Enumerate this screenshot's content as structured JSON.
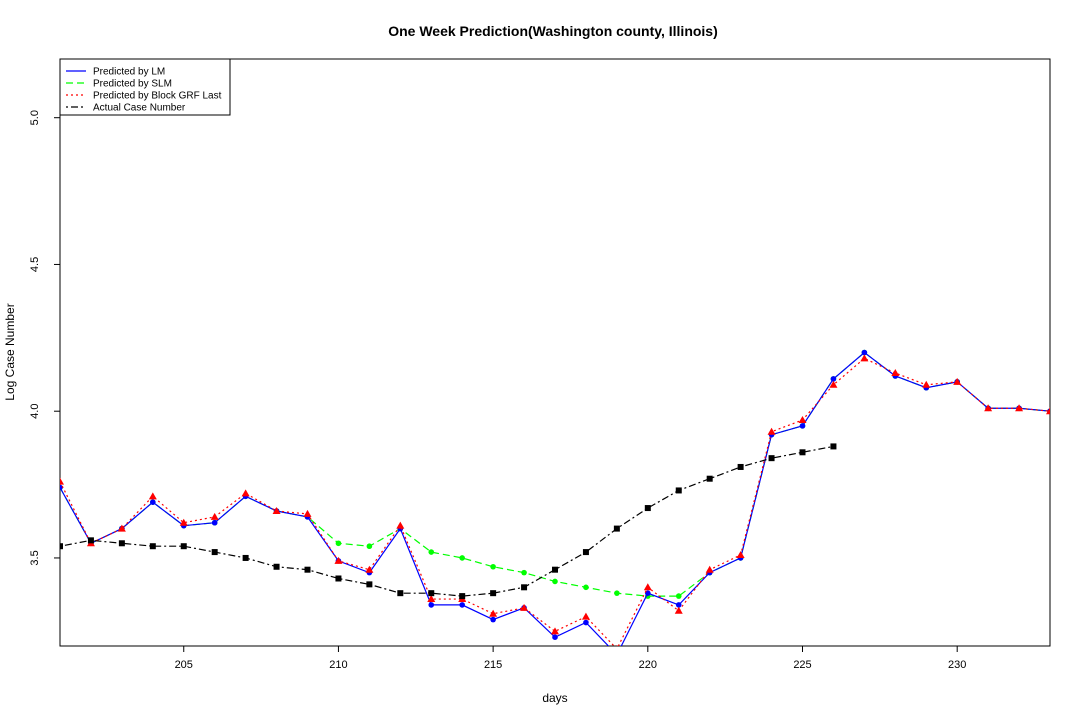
{
  "chart_data": {
    "type": "line",
    "title": "One Week Prediction(Washington county, Illinois)",
    "xlabel": "days",
    "ylabel": "Log Case Number",
    "xlim": [
      201,
      233
    ],
    "ylim": [
      3.2,
      5.2
    ],
    "x_ticks": [
      205,
      210,
      215,
      220,
      225,
      230
    ],
    "y_ticks": [
      3.5,
      4.0,
      4.5,
      5.0
    ],
    "y_tick_labels": [
      "3.5",
      "4.0",
      "4.5",
      "5.0"
    ],
    "grid": false,
    "legend": {
      "position": "top-left",
      "entries": [
        "Predicted by LM",
        "Predicted by SLM",
        "Predicted by Block GRF Last",
        "Actual Case Number"
      ]
    },
    "series": [
      {
        "name": "Predicted by LM",
        "color": "#0000ff",
        "line_style": "solid",
        "marker": "circle",
        "x": [
          201,
          202,
          203,
          204,
          205,
          206,
          207,
          208,
          209,
          210,
          211,
          212,
          213,
          214,
          215,
          216,
          217,
          218,
          219,
          220,
          221,
          222,
          223,
          224,
          225,
          226,
          227,
          228,
          229,
          230,
          231,
          232,
          233
        ],
        "values": [
          3.74,
          3.55,
          3.6,
          3.69,
          3.61,
          3.62,
          3.71,
          3.66,
          3.64,
          3.49,
          3.45,
          3.6,
          3.34,
          3.34,
          3.29,
          3.33,
          3.23,
          3.28,
          3.17,
          3.38,
          3.34,
          3.45,
          3.5,
          3.92,
          3.95,
          4.11,
          4.2,
          4.12,
          4.08,
          4.1,
          4.01,
          4.01,
          4.0
        ]
      },
      {
        "name": "Predicted by SLM",
        "color": "#00ff00",
        "line_style": "dashed",
        "marker": "circle",
        "x": [
          201,
          202,
          203,
          204,
          205,
          206,
          207,
          208,
          209,
          210,
          211,
          212,
          213,
          214,
          215,
          216,
          217,
          218,
          219,
          220,
          221,
          222,
          223,
          224,
          225,
          226,
          227,
          228,
          229,
          230,
          231,
          232,
          233
        ],
        "values": [
          3.74,
          3.55,
          3.6,
          3.69,
          3.61,
          3.62,
          3.71,
          3.66,
          3.64,
          3.55,
          3.54,
          3.6,
          3.52,
          3.5,
          3.47,
          3.45,
          3.42,
          3.4,
          3.38,
          3.37,
          3.37,
          3.45,
          3.5,
          3.92,
          3.95,
          4.11,
          4.2,
          4.12,
          4.08,
          4.1,
          4.01,
          4.01,
          4.0
        ]
      },
      {
        "name": "Predicted by Block GRF Last",
        "color": "#ff0000",
        "line_style": "dotted",
        "marker": "triangle",
        "x": [
          201,
          202,
          203,
          204,
          205,
          206,
          207,
          208,
          209,
          210,
          211,
          212,
          213,
          214,
          215,
          216,
          217,
          218,
          219,
          220,
          221,
          222,
          223,
          224,
          225,
          226,
          227,
          228,
          229,
          230,
          231,
          232,
          233
        ],
        "values": [
          3.76,
          3.55,
          3.6,
          3.71,
          3.62,
          3.64,
          3.72,
          3.66,
          3.65,
          3.49,
          3.46,
          3.61,
          3.36,
          3.36,
          3.31,
          3.33,
          3.25,
          3.3,
          3.19,
          3.4,
          3.32,
          3.46,
          3.51,
          3.93,
          3.97,
          4.09,
          4.18,
          4.13,
          4.09,
          4.1,
          4.01,
          4.01,
          4.0
        ]
      },
      {
        "name": "Actual Case Number",
        "color": "#000000",
        "line_style": "dotdash",
        "marker": "square",
        "x": [
          201,
          202,
          203,
          204,
          205,
          206,
          207,
          208,
          209,
          210,
          211,
          212,
          213,
          214,
          215,
          216,
          217,
          218,
          219,
          220,
          221,
          222,
          223,
          224,
          225,
          226
        ],
        "values": [
          3.54,
          3.56,
          3.55,
          3.54,
          3.54,
          3.52,
          3.5,
          3.47,
          3.46,
          3.43,
          3.41,
          3.38,
          3.38,
          3.37,
          3.38,
          3.4,
          3.46,
          3.52,
          3.6,
          3.67,
          3.73,
          3.77,
          3.81,
          3.84,
          3.86,
          3.88
        ]
      }
    ]
  }
}
